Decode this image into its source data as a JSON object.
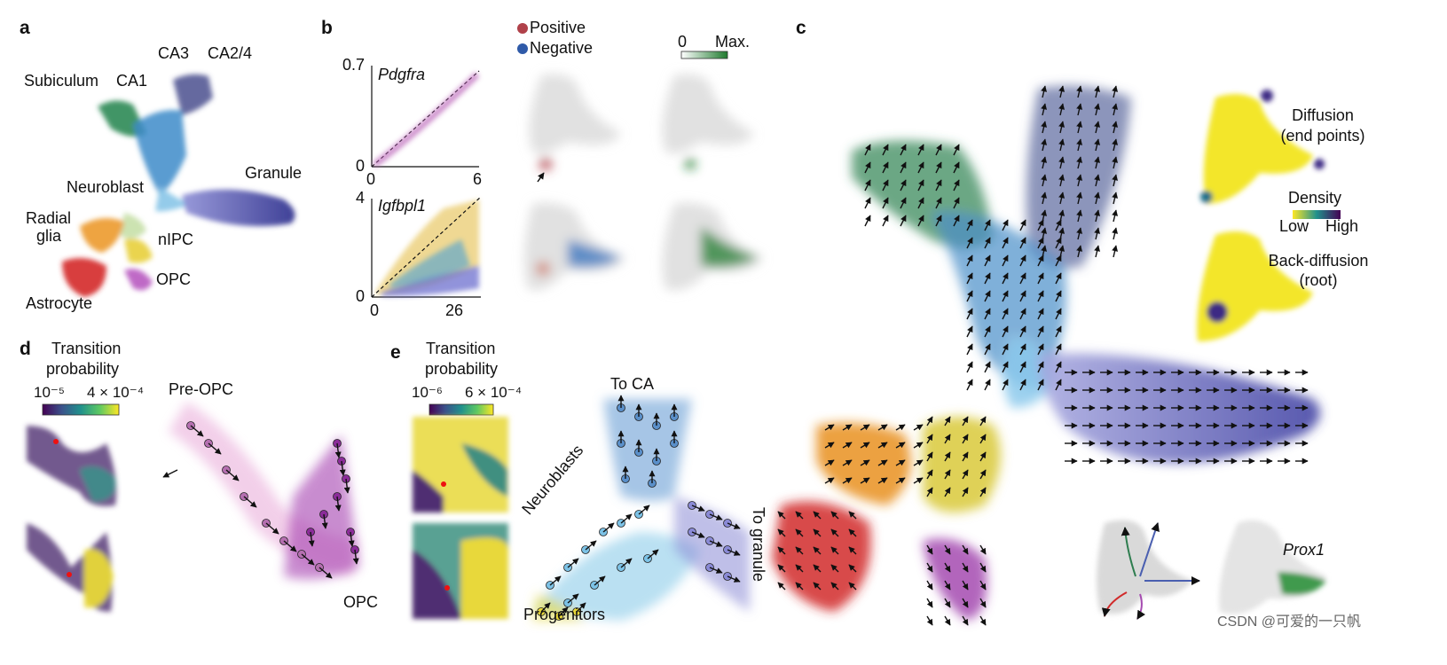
{
  "panels": {
    "a": "a",
    "b": "b",
    "c": "c",
    "d": "d",
    "e": "e"
  },
  "a_labels": {
    "ca3": "CA3",
    "ca24": "CA2/4",
    "subiculum": "Subiculum",
    "ca1": "CA1",
    "granule": "Granule",
    "neuroblast": "Neuroblast",
    "radial": "Radial",
    "glia": "glia",
    "nipc": "nIPC",
    "opc": "OPC",
    "astrocyte": "Astrocyte"
  },
  "b_plot1": {
    "gene": "Pdgfra",
    "ymax": "0.7",
    "y0": "0",
    "x0": "0",
    "xmax": "6"
  },
  "b_plot2": {
    "gene": "Igfbpl1",
    "ymax": "4",
    "y0": "0",
    "x0": "0",
    "xmax": "26"
  },
  "b_legend": {
    "positive": "Positive",
    "negative": "Negative",
    "positive_color": "#b0414a",
    "negative_color": "#2f5aa8"
  },
  "b_scale": {
    "min": "0",
    "max": "Max."
  },
  "c_insets": {
    "diffusion_1": "Diffusion",
    "diffusion_2": "(end points)",
    "density": "Density",
    "low": "Low",
    "high": "High",
    "back_1": "Back-diffusion",
    "back_2": "(root)",
    "prox1": "Prox1"
  },
  "d_labels": {
    "tp_1": "Transition",
    "tp_2": "probability",
    "cb_min": "10⁻⁵",
    "cb_max": "4 × 10⁻⁴",
    "pre_opc": "Pre-OPC",
    "opc": "OPC"
  },
  "e_labels": {
    "tp_1": "Transition",
    "tp_2": "probability",
    "cb_min": "10⁻⁶",
    "cb_max": "6 × 10⁻⁴",
    "to_ca": "To CA",
    "neuroblasts": "Neuroblasts",
    "to_granule": "To granule",
    "progenitors": "Progenitors"
  },
  "watermark": "CSDN @可爱的一只帆"
}
